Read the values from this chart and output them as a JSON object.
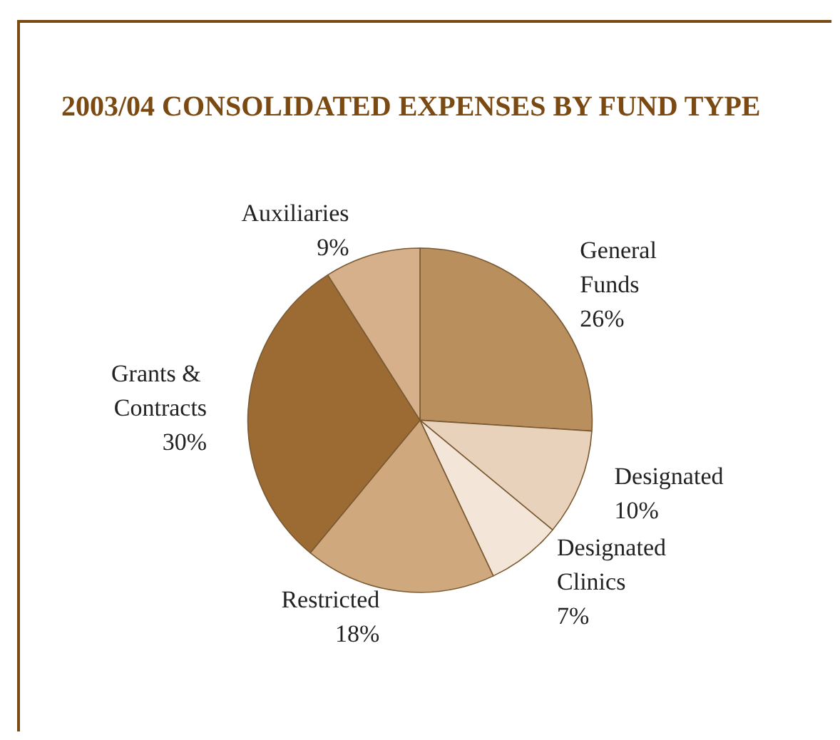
{
  "chart_data": {
    "type": "pie",
    "title": "2003/04 CONSOLIDATED EXPENSES BY FUND TYPE",
    "categories": [
      "General Funds",
      "Designated",
      "Designated Clinics",
      "Restricted",
      "Grants & Contracts",
      "Auxiliaries"
    ],
    "values": [
      26,
      10,
      7,
      18,
      30,
      9
    ],
    "value_labels": [
      "26%",
      "10%",
      "7%",
      "18%",
      "30%",
      "9%"
    ],
    "colors": [
      "#b98f5e",
      "#e8d2bb",
      "#f3e6d8",
      "#cfa97d",
      "#9c6a33",
      "#d6b08a"
    ],
    "legend": false
  }
}
